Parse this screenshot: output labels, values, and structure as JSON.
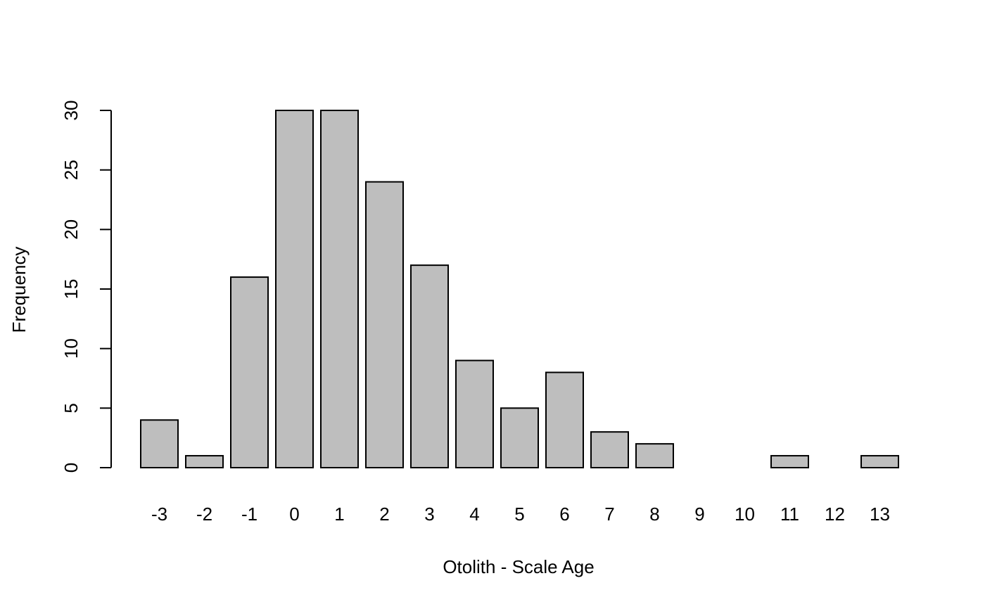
{
  "chart_data": {
    "type": "bar",
    "categories": [
      "-3",
      "-2",
      "-1",
      "0",
      "1",
      "2",
      "3",
      "4",
      "5",
      "6",
      "7",
      "8",
      "9",
      "10",
      "11",
      "12",
      "13"
    ],
    "values": [
      4,
      1,
      16,
      30,
      30,
      24,
      17,
      9,
      5,
      8,
      3,
      2,
      0,
      0,
      1,
      0,
      1
    ],
    "title": "",
    "xlabel": "Otolith - Scale Age",
    "ylabel": "Frequency",
    "ylim": [
      0,
      30
    ],
    "yticks": [
      0,
      5,
      10,
      15,
      20,
      25,
      30
    ],
    "grid": false,
    "colors": {
      "bar_fill": "#bebebe",
      "bar_stroke": "#000000"
    }
  }
}
